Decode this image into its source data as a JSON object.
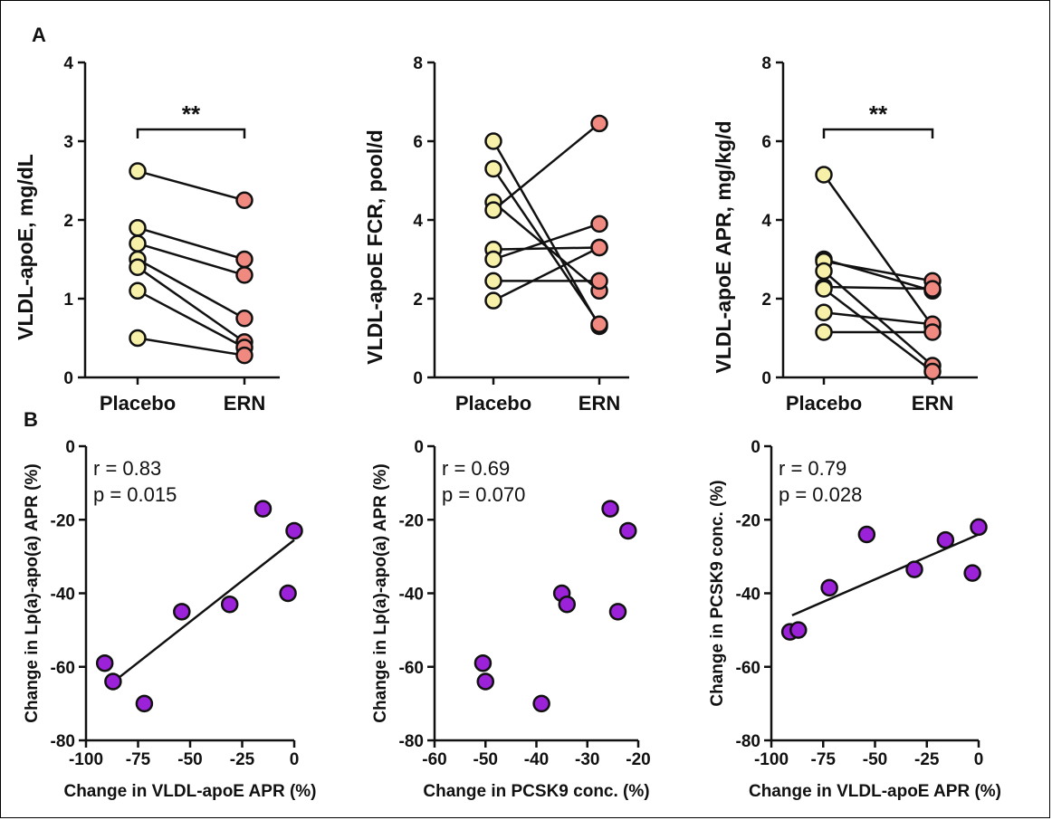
{
  "chart_data": [
    {
      "type": "scatter",
      "panel_label": "A",
      "variant": "paired-dot",
      "ylabel": "VLDL-apoE, mg/dL",
      "ylim": [
        0,
        4
      ],
      "yticks": [
        "0",
        "1",
        "2",
        "3",
        "4"
      ],
      "categories": [
        "Placebo",
        "ERN"
      ],
      "significance": "**",
      "pairs": [
        [
          2.62,
          2.25
        ],
        [
          1.9,
          1.5
        ],
        [
          1.7,
          1.3
        ],
        [
          1.5,
          0.75
        ],
        [
          1.4,
          0.45
        ],
        [
          1.1,
          0.38
        ],
        [
          0.5,
          0.28
        ]
      ],
      "colors": {
        "placebo": "#f7f0a8",
        "ern": "#f08a80"
      }
    },
    {
      "type": "scatter",
      "variant": "paired-dot",
      "ylabel": "VLDL-apoE FCR, pool/d",
      "ylim": [
        0,
        8
      ],
      "yticks": [
        "0",
        "2",
        "4",
        "6",
        "8"
      ],
      "categories": [
        "Placebo",
        "ERN"
      ],
      "pairs": [
        [
          6.0,
          1.3
        ],
        [
          5.3,
          1.35
        ],
        [
          4.45,
          2.2
        ],
        [
          4.25,
          6.45
        ],
        [
          3.25,
          3.3
        ],
        [
          3.0,
          3.9
        ],
        [
          2.45,
          2.45
        ],
        [
          1.95,
          3.3
        ]
      ],
      "colors": {
        "placebo": "#f7f0a8",
        "ern": "#f08a80"
      }
    },
    {
      "type": "scatter",
      "variant": "paired-dot",
      "ylabel": "VLDL-apoE APR, mg/kg/d",
      "ylim": [
        0,
        8
      ],
      "yticks": [
        "0",
        "2",
        "4",
        "6",
        "8"
      ],
      "categories": [
        "Placebo",
        "ERN"
      ],
      "significance": "**",
      "pairs": [
        [
          5.15,
          1.3
        ],
        [
          3.0,
          2.2
        ],
        [
          2.95,
          2.45
        ],
        [
          2.7,
          0.3
        ],
        [
          2.3,
          2.25
        ],
        [
          2.25,
          0.15
        ],
        [
          1.65,
          1.35
        ],
        [
          1.15,
          1.15
        ]
      ],
      "colors": {
        "placebo": "#f7f0a8",
        "ern": "#f08a80"
      }
    },
    {
      "type": "scatter",
      "panel_label": "B",
      "xlabel": "Change in VLDL-apoE APR (%)",
      "ylabel": "Change in Lp(a)-apo(a) APR (%)",
      "xlim": [
        -100,
        0
      ],
      "ylim": [
        -80,
        0
      ],
      "xticks": [
        "-100",
        "-75",
        "-50",
        "-25",
        "0"
      ],
      "yticks": [
        "-80",
        "-60",
        "-40",
        "-20",
        "0"
      ],
      "annotation": [
        "r = 0.83",
        "p = 0.015"
      ],
      "points": [
        [
          -91,
          -59
        ],
        [
          -87,
          -64
        ],
        [
          -72,
          -70
        ],
        [
          -54,
          -45
        ],
        [
          -31,
          -43
        ],
        [
          -15,
          -17
        ],
        [
          -3,
          -40
        ],
        [
          0,
          -23
        ]
      ],
      "fit": [
        [
          -90,
          -65.5
        ],
        [
          0,
          -25.5
        ]
      ],
      "color": "#9b22d8"
    },
    {
      "type": "scatter",
      "xlabel": "Change in PCSK9 conc. (%)",
      "ylabel": "Change in Lp(a)-apo(a) APR (%)",
      "xlim": [
        -60,
        -20
      ],
      "ylim": [
        -80,
        0
      ],
      "xticks": [
        "-60",
        "-50",
        "-40",
        "-30",
        "-20"
      ],
      "yticks": [
        "-80",
        "-60",
        "-40",
        "-20",
        "0"
      ],
      "annotation": [
        "r = 0.69",
        "p = 0.070"
      ],
      "points": [
        [
          -50.5,
          -59
        ],
        [
          -50,
          -64
        ],
        [
          -39,
          -70
        ],
        [
          -35,
          -40
        ],
        [
          -34,
          -43
        ],
        [
          -25.5,
          -17
        ],
        [
          -24,
          -45
        ],
        [
          -22,
          -23
        ]
      ],
      "color": "#9b22d8"
    },
    {
      "type": "scatter",
      "xlabel": "Change in VLDL-apoE APR (%)",
      "ylabel": "Change in PCSK9 conc. (%)",
      "xlim": [
        -100,
        0
      ],
      "ylim": [
        -80,
        0
      ],
      "xticks": [
        "-100",
        "-75",
        "-50",
        "-25",
        "0"
      ],
      "yticks": [
        "-80",
        "-60",
        "-40",
        "-20",
        "0"
      ],
      "annotation": [
        "r = 0.79",
        "p = 0.028"
      ],
      "points": [
        [
          -91,
          -50.5
        ],
        [
          -87,
          -50
        ],
        [
          -72,
          -38.5
        ],
        [
          -54,
          -24
        ],
        [
          -31,
          -33.5
        ],
        [
          -16,
          -25.5
        ],
        [
          -3,
          -34.5
        ],
        [
          0,
          -22
        ]
      ],
      "fit": [
        [
          -90,
          -46
        ],
        [
          0,
          -24
        ]
      ],
      "color": "#9b22d8"
    }
  ]
}
